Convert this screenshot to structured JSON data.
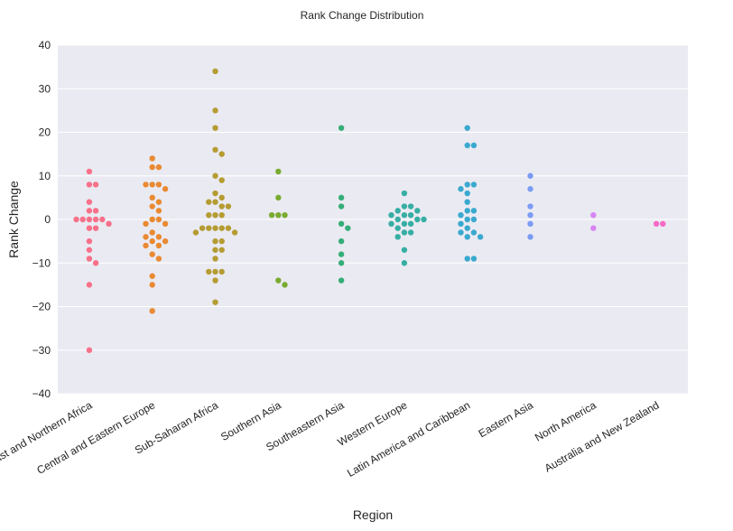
{
  "chart_data": {
    "type": "scatter",
    "subtype": "swarm",
    "title": "Rank Change Distribution",
    "xlabel": "Region",
    "ylabel": "Rank Change",
    "ylim": [
      -40,
      40
    ],
    "yticks": [
      -40,
      -30,
      -20,
      -10,
      0,
      10,
      20,
      30,
      40
    ],
    "grid": true,
    "legend": "none",
    "background": "#EAEAF2",
    "categories": [
      "Middle East and Northern Africa",
      "Central and Eastern Europe",
      "Sub-Saharan Africa",
      "Southern Asia",
      "Southeastern Asia",
      "Western Europe",
      "Latin America and Caribbean",
      "Eastern Asia",
      "North America",
      "Australia and New Zealand"
    ],
    "colors": [
      "#F77189",
      "#E98A33",
      "#B59C32",
      "#79AB31",
      "#35AE78",
      "#37AEA4",
      "#3AA9CF",
      "#7A9CF4",
      "#D684F4",
      "#F769C6"
    ],
    "values": [
      [
        11,
        8,
        8,
        4,
        2,
        2,
        0,
        0,
        0,
        0,
        0,
        -1,
        -2,
        -2,
        -5,
        -7,
        -9,
        -10,
        -15,
        -30
      ],
      [
        14,
        12,
        12,
        8,
        8,
        8,
        7,
        5,
        4,
        3,
        2,
        0,
        0,
        -1,
        -1,
        -3,
        -4,
        -4,
        -5,
        -5,
        -6,
        -6,
        -8,
        -9,
        -13,
        -15,
        -21
      ],
      [
        34,
        25,
        21,
        16,
        15,
        10,
        9,
        6,
        5,
        4,
        4,
        3,
        3,
        1,
        1,
        1,
        -2,
        -2,
        -2,
        -2,
        -2,
        -3,
        -3,
        -5,
        -5,
        -7,
        -7,
        -9,
        -12,
        -12,
        -12,
        -14,
        -19
      ],
      [
        11,
        5,
        1,
        1,
        1,
        -14,
        -15
      ],
      [
        21,
        5,
        3,
        -1,
        -2,
        -5,
        -8,
        -10,
        -14
      ],
      [
        6,
        3,
        3,
        2,
        2,
        1,
        1,
        1,
        0,
        0,
        0,
        -1,
        -1,
        -1,
        -2,
        -3,
        -3,
        -4,
        -7,
        -10
      ],
      [
        21,
        17,
        17,
        8,
        8,
        7,
        6,
        4,
        2,
        2,
        1,
        0,
        0,
        -1,
        -2,
        -3,
        -3,
        -4,
        -4,
        -9,
        -9
      ],
      [
        10,
        7,
        3,
        1,
        -1,
        -4
      ],
      [
        1,
        -2
      ],
      [
        -1,
        -1
      ]
    ]
  }
}
